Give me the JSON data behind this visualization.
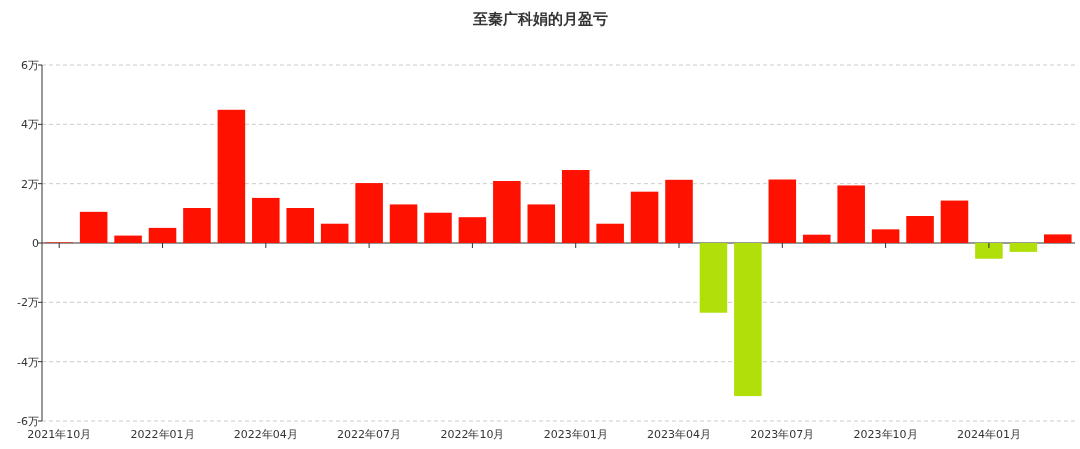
{
  "chart_data": {
    "type": "bar",
    "title": "至秦广科娟的月盈亏",
    "categories": [
      "2021年10月",
      null,
      null,
      "2022年01月",
      null,
      null,
      "2022年04月",
      null,
      null,
      "2022年07月",
      null,
      null,
      "2022年10月",
      null,
      null,
      "2023年01月",
      null,
      null,
      "2023年04月",
      null,
      null,
      "2023年07月",
      null,
      null,
      "2023年10月",
      null,
      null,
      "2024年01月",
      null,
      null
    ],
    "values": [
      0.02,
      1.05,
      0.25,
      0.51,
      1.18,
      4.49,
      1.52,
      1.18,
      0.65,
      2.02,
      1.3,
      1.02,
      0.87,
      2.09,
      1.3,
      2.46,
      0.65,
      1.73,
      2.13,
      -2.35,
      -5.16,
      2.14,
      0.28,
      1.94,
      0.46,
      0.91,
      1.43,
      -0.53,
      -0.3,
      0.29
    ],
    "colors": [
      "#ff1100",
      "#ff1100",
      "#ff1100",
      "#ff1100",
      "#ff1100",
      "#ff1100",
      "#ff1100",
      "#ff1100",
      "#ff1100",
      "#ff1100",
      "#ff1100",
      "#ff1100",
      "#ff1100",
      "#ff1100",
      "#ff1100",
      "#ff1100",
      "#ff1100",
      "#ff1100",
      "#ff1100",
      "#b0df0a",
      "#b0df0a",
      "#ff1100",
      "#ff1100",
      "#ff1100",
      "#ff1100",
      "#ff1100",
      "#ff1100",
      "#b0df0a",
      "#b0df0a",
      "#ff1100"
    ],
    "ylim": [
      -6,
      6
    ],
    "yticks": [
      {
        "value": -6,
        "label": "-6万"
      },
      {
        "value": -4,
        "label": "-4万"
      },
      {
        "value": -2,
        "label": "-2万"
      },
      0,
      {
        "value": 2,
        "label": "2万"
      },
      {
        "value": 4,
        "label": "4万"
      },
      {
        "value": 6,
        "label": "6万"
      }
    ],
    "grid": "y"
  }
}
